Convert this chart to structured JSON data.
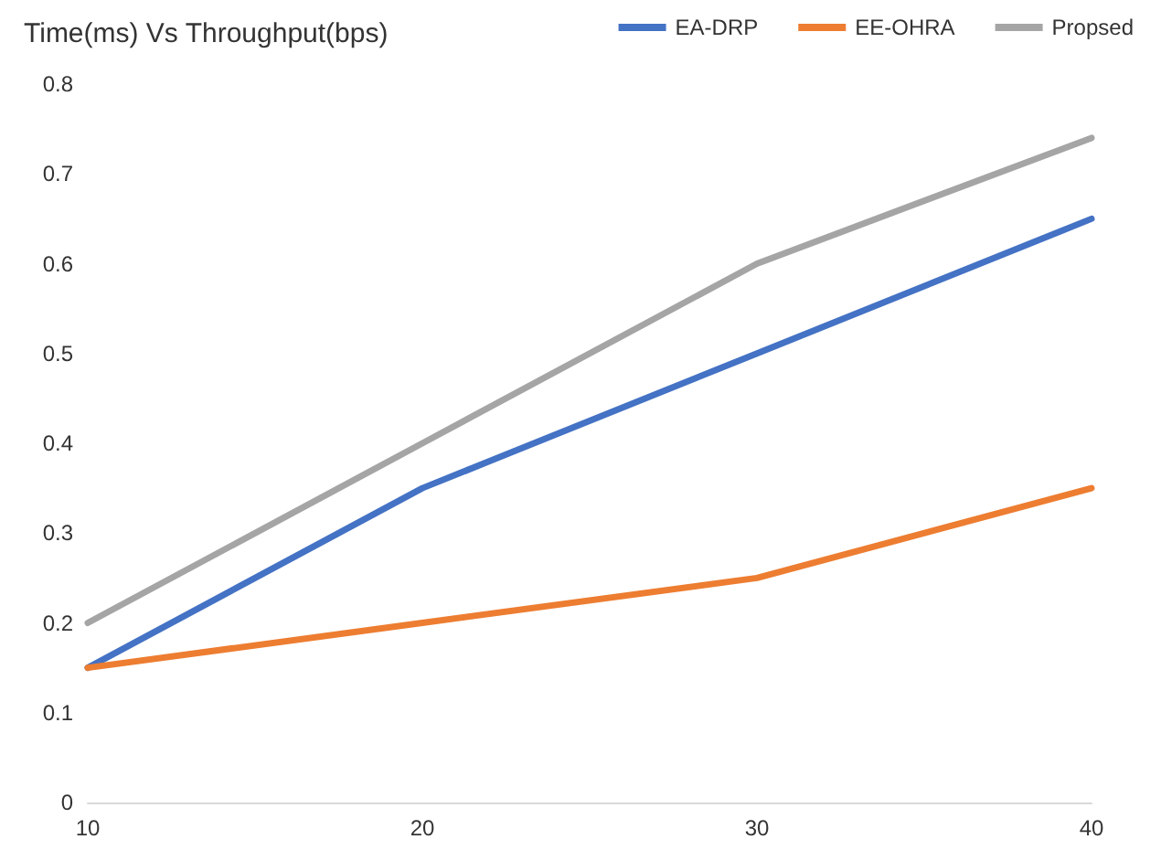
{
  "chart_data": {
    "type": "line",
    "title": "Time(ms) Vs Throughput(bps)",
    "categories": [
      "10",
      "20",
      "30",
      "40"
    ],
    "series": [
      {
        "name": "EA-DRP",
        "color": "#4472c4",
        "values": [
          0.15,
          0.35,
          0.5,
          0.65
        ]
      },
      {
        "name": "EE-OHRA",
        "color": "#ed7d31",
        "values": [
          0.15,
          0.2,
          0.25,
          0.35
        ]
      },
      {
        "name": "Propsed",
        "color": "#a5a5a5",
        "values": [
          0.2,
          0.4,
          0.6,
          0.74
        ]
      }
    ],
    "ylim": [
      0,
      0.8
    ],
    "yticks": [
      0,
      0.1,
      0.2,
      0.3,
      0.4,
      0.5,
      0.6,
      0.7,
      0.8
    ],
    "grid": false,
    "legend": "top right",
    "marker": "none",
    "line_style": "solid"
  }
}
